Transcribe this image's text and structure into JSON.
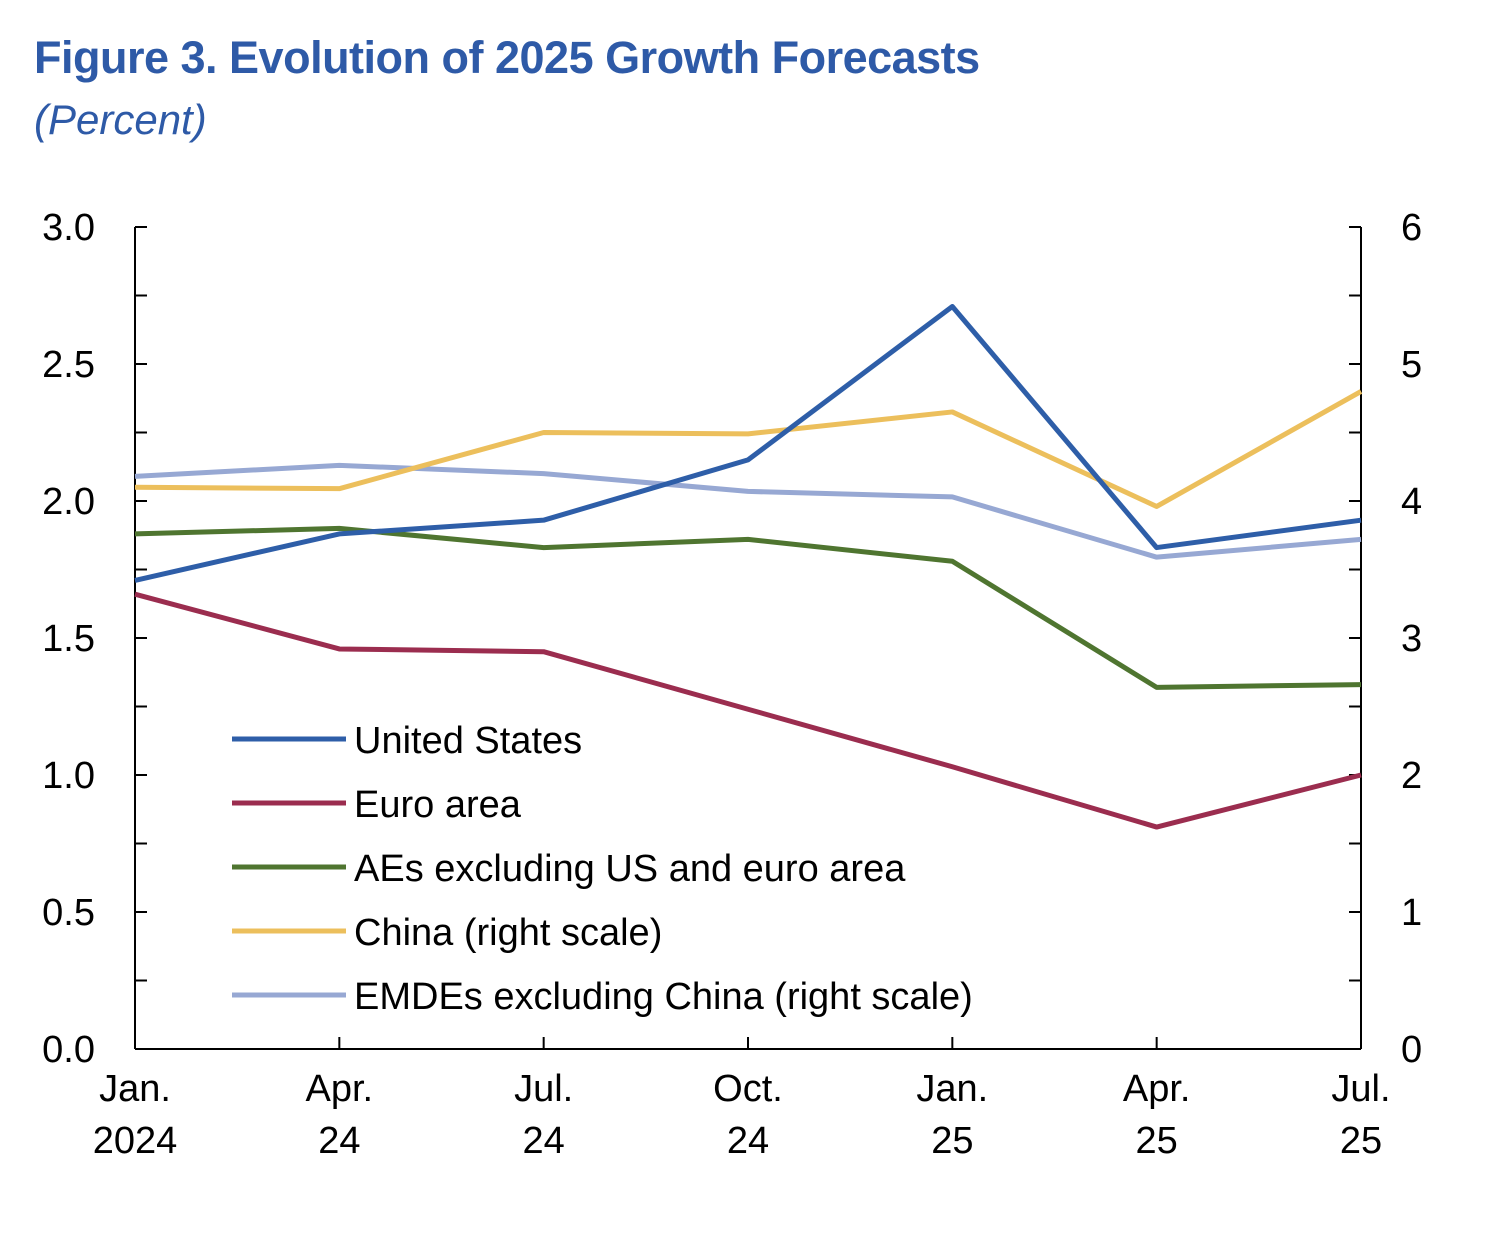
{
  "chart_data": {
    "type": "line",
    "title": "Figure 3.  Evolution of 2025 Growth Forecasts",
    "subtitle": "(Percent)",
    "categories": [
      [
        "Jan.",
        "2024"
      ],
      [
        "Apr.",
        "24"
      ],
      [
        "Jul.",
        "24"
      ],
      [
        "Oct.",
        "24"
      ],
      [
        "Jan.",
        "25"
      ],
      [
        "Apr.",
        "25"
      ],
      [
        "Jul.",
        "25"
      ]
    ],
    "y_left": {
      "min": 0,
      "max": 3,
      "ticks": [
        "0.0",
        "0.5",
        "1.0",
        "1.5",
        "2.0",
        "2.5",
        "3.0"
      ]
    },
    "y_right": {
      "min": 0,
      "max": 6,
      "ticks": [
        "0",
        "1",
        "2",
        "3",
        "4",
        "5",
        "6"
      ]
    },
    "legend_position": "bottom-left",
    "series": [
      {
        "name": "United States",
        "axis": "left",
        "color": "#2e5ea8",
        "values": [
          1.71,
          1.88,
          1.93,
          2.15,
          2.71,
          1.83,
          1.93
        ]
      },
      {
        "name": "Euro area",
        "axis": "left",
        "color": "#9b2d4f",
        "values": [
          1.66,
          1.46,
          1.45,
          1.24,
          1.03,
          0.81,
          1.0
        ]
      },
      {
        "name": "AEs excluding US and euro area",
        "axis": "left",
        "color": "#4f7530",
        "values": [
          1.88,
          1.9,
          1.83,
          1.86,
          1.78,
          1.32,
          1.33
        ]
      },
      {
        "name": "China (right scale)",
        "axis": "right",
        "color": "#ecbf5c",
        "values": [
          4.1,
          4.09,
          4.5,
          4.49,
          4.65,
          3.96,
          4.8
        ]
      },
      {
        "name": "EMDEs excluding China (right scale)",
        "axis": "right",
        "color": "#97a8d3",
        "values": [
          4.18,
          4.26,
          4.2,
          4.07,
          4.03,
          3.59,
          3.72
        ]
      }
    ]
  }
}
